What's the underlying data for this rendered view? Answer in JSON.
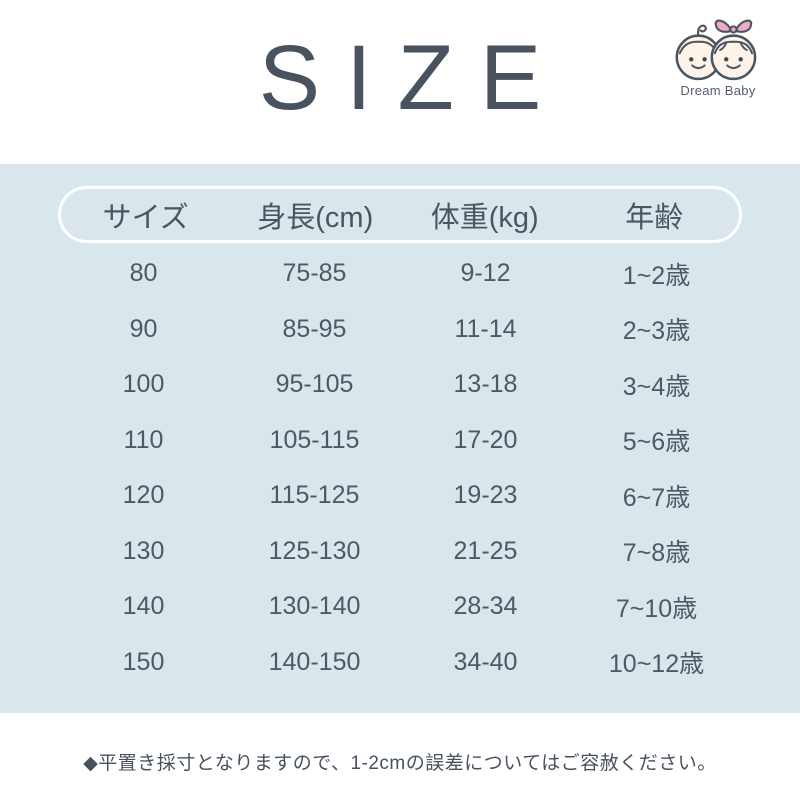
{
  "title": "SIZE",
  "logo": {
    "brand": "Dream Baby"
  },
  "chart_data": {
    "type": "table",
    "title": "SIZE",
    "columns": [
      "サイズ",
      "身長(cm)",
      "体重(kg)",
      "年齢"
    ],
    "rows": [
      [
        "80",
        "75-85",
        "9-12",
        "1~2歳"
      ],
      [
        "90",
        "85-95",
        "11-14",
        "2~3歳"
      ],
      [
        "100",
        "95-105",
        "13-18",
        "3~4歳"
      ],
      [
        "110",
        "105-115",
        "17-20",
        "5~6歳"
      ],
      [
        "120",
        "115-125",
        "19-23",
        "6~7歳"
      ],
      [
        "130",
        "125-130",
        "21-25",
        "7~8歳"
      ],
      [
        "140",
        "130-140",
        "28-34",
        "7~10歳"
      ],
      [
        "150",
        "140-150",
        "34-40",
        "10~12歳"
      ]
    ]
  },
  "note": "◆平置き採寸となりますので、1-2cmの誤差についてはご容赦ください。",
  "colors": {
    "panel_blue": "#d9e7ec",
    "text_slate": "#4d5763",
    "pill_border": "#ffffff",
    "bow_pink": "#ecaac6",
    "face_cream": "#fdf3e9"
  }
}
